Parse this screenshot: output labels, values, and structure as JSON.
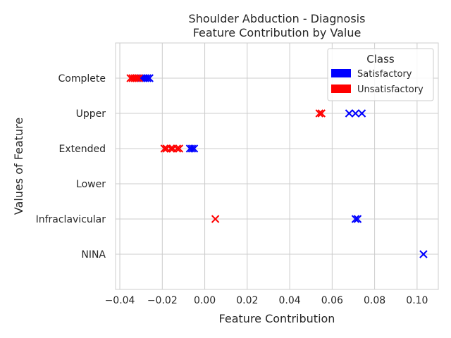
{
  "chart_data": {
    "type": "scatter",
    "title": [
      "Shoulder Abduction - Diagnosis",
      "Feature Contribution by Value"
    ],
    "xlabel": "Feature Contribution",
    "ylabel": "Values of Feature",
    "xlim": [
      -0.042,
      0.11
    ],
    "x_ticks": [
      -0.04,
      -0.02,
      0.0,
      0.02,
      0.04,
      0.06,
      0.08,
      0.1
    ],
    "x_tick_labels": [
      "−0.04",
      "−0.02",
      "0.00",
      "0.02",
      "0.04",
      "0.06",
      "0.08",
      "0.10"
    ],
    "categories": [
      "Complete",
      "Upper",
      "Extended",
      "Lower",
      "Infraclavicular",
      "NINA"
    ],
    "grid": true,
    "marker": "x",
    "legend": {
      "title": "Class",
      "placement": "top-right",
      "entries": [
        {
          "name": "Satisfactory",
          "color": "#0000ff"
        },
        {
          "name": "Unsatisfactory",
          "color": "#ff0000"
        }
      ]
    },
    "series": [
      {
        "name": "Satisfactory",
        "color": "#0000ff",
        "points": [
          {
            "category": "Complete",
            "x": -0.03
          },
          {
            "category": "Complete",
            "x": -0.029
          },
          {
            "category": "Complete",
            "x": -0.028
          },
          {
            "category": "Complete",
            "x": -0.027
          },
          {
            "category": "Complete",
            "x": -0.026
          },
          {
            "category": "Upper",
            "x": 0.068
          },
          {
            "category": "Upper",
            "x": 0.071
          },
          {
            "category": "Upper",
            "x": 0.074
          },
          {
            "category": "Extended",
            "x": -0.007
          },
          {
            "category": "Extended",
            "x": -0.006
          },
          {
            "category": "Extended",
            "x": -0.005
          },
          {
            "category": "Infraclavicular",
            "x": 0.071
          },
          {
            "category": "Infraclavicular",
            "x": 0.072
          },
          {
            "category": "NINA",
            "x": 0.103
          }
        ]
      },
      {
        "name": "Unsatisfactory",
        "color": "#ff0000",
        "points": [
          {
            "category": "Complete",
            "x": -0.035
          },
          {
            "category": "Complete",
            "x": -0.034
          },
          {
            "category": "Complete",
            "x": -0.033
          },
          {
            "category": "Complete",
            "x": -0.032
          },
          {
            "category": "Complete",
            "x": -0.031
          },
          {
            "category": "Upper",
            "x": 0.054
          },
          {
            "category": "Upper",
            "x": 0.055
          },
          {
            "category": "Extended",
            "x": -0.019
          },
          {
            "category": "Extended",
            "x": -0.018
          },
          {
            "category": "Extended",
            "x": -0.016
          },
          {
            "category": "Extended",
            "x": -0.015
          },
          {
            "category": "Extended",
            "x": -0.013
          },
          {
            "category": "Extended",
            "x": -0.012
          },
          {
            "category": "Infraclavicular",
            "x": 0.005
          }
        ]
      }
    ]
  }
}
